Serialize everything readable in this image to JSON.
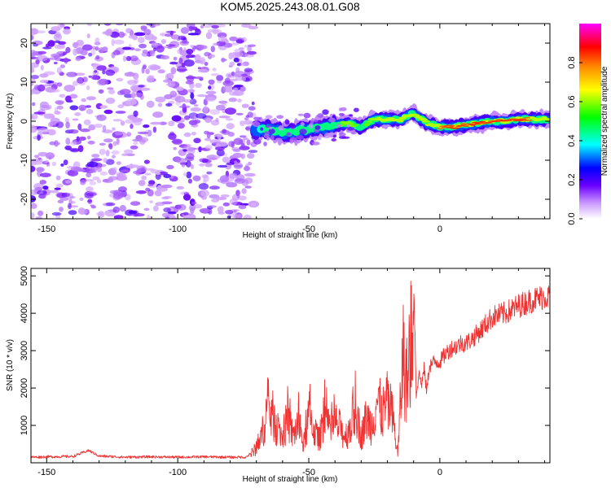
{
  "chart_data": [
    {
      "type": "heatmap",
      "title": "KOM5.2025.243.08.01.G08",
      "xlabel": "Height of straight line (km)",
      "ylabel": "Frequency (Hz)",
      "xlim": [
        -156,
        42
      ],
      "ylim": [
        -25,
        25
      ],
      "x_ticks": [
        -150,
        -100,
        -50,
        0
      ],
      "x_tick_labels": [
        "-150",
        "-100",
        "-50",
        "0"
      ],
      "y_ticks": [
        20,
        10,
        0,
        -10,
        -20
      ],
      "y_tick_labels": [
        "20",
        "10",
        "0",
        "-10",
        "-20"
      ],
      "noise_region_x": [
        -156,
        -71
      ],
      "signal_track": {
        "x": [
          -71,
          -66,
          -60,
          -55,
          -50,
          -45,
          -40,
          -35,
          -30,
          -25,
          -20,
          -15,
          -10,
          -5,
          0,
          5,
          10,
          15,
          20,
          25,
          30,
          35,
          42
        ],
        "freq": [
          -2.5,
          -2,
          -3,
          -2.5,
          -2,
          -1.5,
          -1,
          -0.5,
          -1.5,
          0.5,
          0.5,
          0.5,
          2,
          -0.5,
          -1.5,
          -1.5,
          -1,
          -0.5,
          0,
          0,
          0.5,
          0.5,
          0.5
        ],
        "amplitude": [
          0.35,
          0.45,
          0.45,
          0.5,
          0.55,
          0.5,
          0.55,
          0.6,
          0.55,
          0.6,
          0.65,
          0.7,
          0.7,
          0.6,
          0.8,
          0.85,
          0.9,
          0.95,
          0.95,
          0.9,
          0.85,
          0.8,
          0.75
        ]
      },
      "colorbar": {
        "label": "Normalized spectral amplitude",
        "range": [
          0,
          1
        ],
        "ticks": [
          0.0,
          0.2,
          0.4,
          0.6,
          0.8
        ],
        "tick_labels": [
          "0.0",
          "0.2",
          "0.4",
          "0.6",
          "0.8"
        ],
        "colormap": [
          "#ffffff",
          "#9966ff",
          "#0000ff",
          "#00ffff",
          "#00ff00",
          "#ffff00",
          "#ff8800",
          "#ff0000",
          "#ff00ff"
        ]
      }
    },
    {
      "type": "line",
      "xlabel": "Height of straight line (km)",
      "ylabel": "SNR (10 * v/v)",
      "xlim": [
        -156,
        42
      ],
      "ylim": [
        0,
        5200
      ],
      "x_ticks": [
        -150,
        -100,
        -50,
        0
      ],
      "x_tick_labels": [
        "-150",
        "-100",
        "-50",
        "0"
      ],
      "y_ticks": [
        1000,
        2000,
        3000,
        4000,
        5000
      ],
      "y_tick_labels": [
        "1000",
        "2000",
        "3000",
        "4000",
        "5000"
      ],
      "line_color": "#ee3333",
      "series": [
        {
          "name": "SNR",
          "x": [
            -156,
            -150,
            -140,
            -134,
            -130,
            -120,
            -110,
            -100,
            -90,
            -80,
            -74,
            -71,
            -68,
            -66,
            -64,
            -62,
            -60,
            -58,
            -56,
            -54,
            -52,
            -50,
            -48,
            -46,
            -44,
            -42,
            -40,
            -38,
            -36,
            -34,
            -32,
            -30,
            -28,
            -26,
            -24,
            -22,
            -20,
            -18,
            -16,
            -14,
            -13,
            -12,
            -11,
            -10,
            -9.5,
            -9,
            -8,
            -7,
            -6,
            -5,
            -4,
            -2,
            0,
            2,
            4,
            6,
            8,
            10,
            12,
            15,
            20,
            25,
            30,
            35,
            40,
            42
          ],
          "y": [
            150,
            160,
            170,
            330,
            180,
            150,
            160,
            150,
            160,
            150,
            150,
            300,
            700,
            1400,
            1300,
            900,
            700,
            1200,
            700,
            1100,
            450,
            1300,
            900,
            600,
            1400,
            800,
            1100,
            900,
            700,
            1000,
            1500,
            700,
            1200,
            1000,
            1700,
            1300,
            1600,
            1200,
            200,
            3000,
            2100,
            2400,
            2800,
            5100,
            3500,
            1800,
            2400,
            2100,
            2500,
            1900,
            2600,
            2700,
            2700,
            2900,
            3050,
            3100,
            3200,
            3200,
            3300,
            3500,
            3900,
            4000,
            4200,
            4350,
            4450,
            4450
          ]
        }
      ]
    }
  ]
}
